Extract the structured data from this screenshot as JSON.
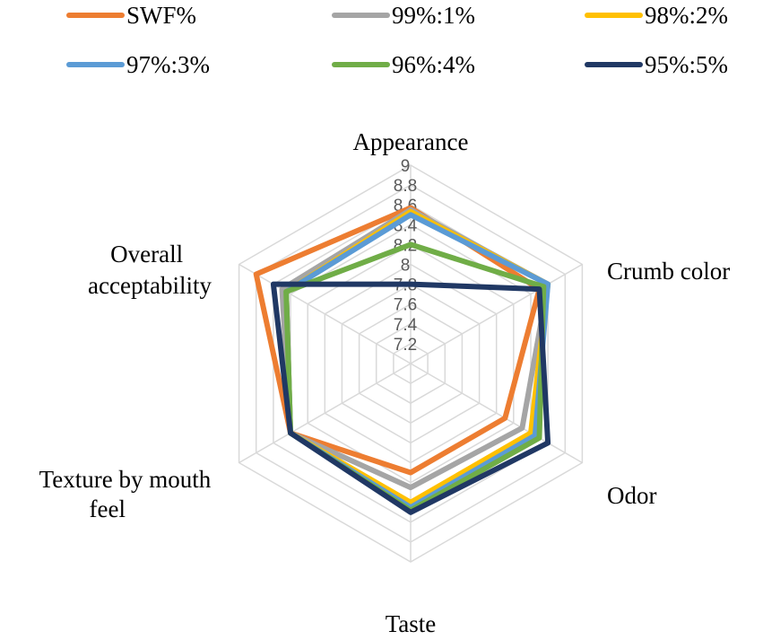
{
  "chart_data": {
    "type": "radar",
    "title": "",
    "axes": [
      "Appearance",
      "Crumb color",
      "Odor",
      "Taste",
      "Texture by mouth feel",
      "Overall acceptability"
    ],
    "rmin": 7,
    "rmax": 9,
    "ticks": [
      "7.2",
      "7.4",
      "7.6",
      "7.8",
      "8",
      "8.2",
      "8.4",
      "8.6",
      "8.8",
      "9"
    ],
    "legend_position": "top",
    "series": [
      {
        "name": "SWF%",
        "color": "#ED7D31",
        "values": [
          8.57,
          8.5,
          8.1,
          8.1,
          8.4,
          8.8
        ]
      },
      {
        "name": "99%:1%",
        "color": "#A5A5A5",
        "values": [
          8.55,
          8.6,
          8.3,
          8.25,
          8.4,
          8.5
        ]
      },
      {
        "name": "98%:2%",
        "color": "#FFC000",
        "values": [
          8.53,
          8.6,
          8.4,
          8.4,
          8.4,
          8.45
        ]
      },
      {
        "name": "97%:3%",
        "color": "#5B9BD5",
        "values": [
          8.5,
          8.6,
          8.45,
          8.45,
          8.4,
          8.45
        ]
      },
      {
        "name": "96%:4%",
        "color": "#70AD47",
        "values": [
          8.2,
          8.55,
          8.5,
          8.48,
          8.4,
          8.45
        ]
      },
      {
        "name": "95%:5%",
        "color": "#203864",
        "values": [
          7.8,
          8.5,
          8.6,
          8.5,
          8.4,
          8.6
        ]
      }
    ]
  }
}
